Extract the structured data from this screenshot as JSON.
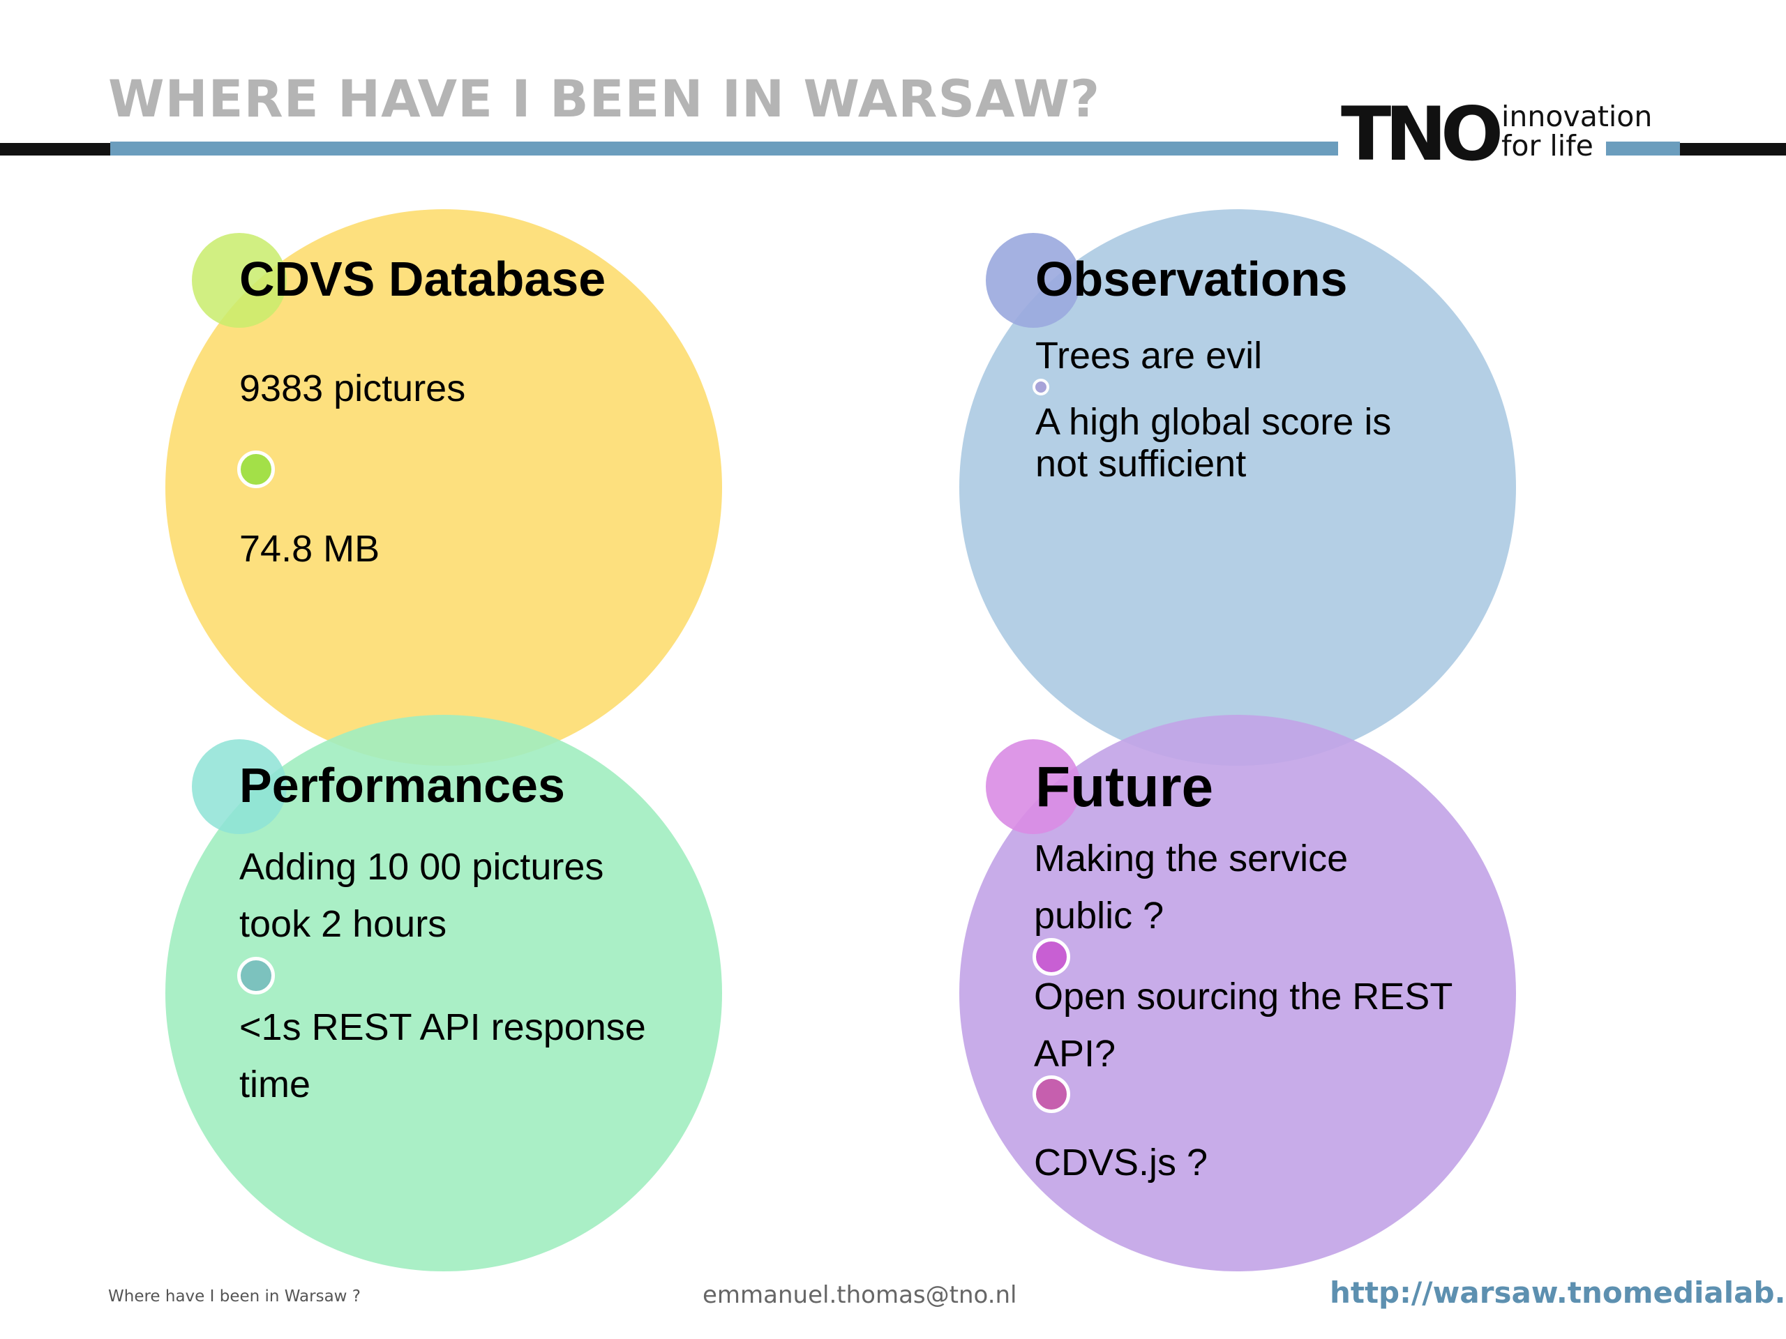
{
  "header": {
    "title": "WHERE HAVE I BEEN IN WARSAW?",
    "logo": {
      "mark": "TNO",
      "tagline_line1": "innovation",
      "tagline_line2": "for life"
    }
  },
  "colors": {
    "yellow": "#fde07e",
    "blue": "#b4cfe5",
    "green": "#a1edc0",
    "purple": "#c2a3e7",
    "accent_bar": "#6b9dbd"
  },
  "quadrants": {
    "database": {
      "heading": "CDVS Database",
      "items": [
        "9383 pictures",
        "74.8 MB"
      ]
    },
    "observations": {
      "heading": "Observations",
      "items": [
        "Trees are evil",
        "A high global score is",
        "not sufficient"
      ]
    },
    "performances": {
      "heading": "Performances",
      "items": [
        "Adding 10 00 pictures",
        "took 2 hours",
        "<1s REST API response",
        "time"
      ]
    },
    "future": {
      "heading": "Future",
      "items": [
        "Making the service",
        "public ?",
        "Open sourcing the REST",
        "API?",
        "CDVS.js ?"
      ]
    }
  },
  "footer": {
    "left": "Where have I been in Warsaw ?",
    "email": "emmanuel.thomas@tno.nl",
    "url": "http://warsaw.tnomedialab.io"
  }
}
